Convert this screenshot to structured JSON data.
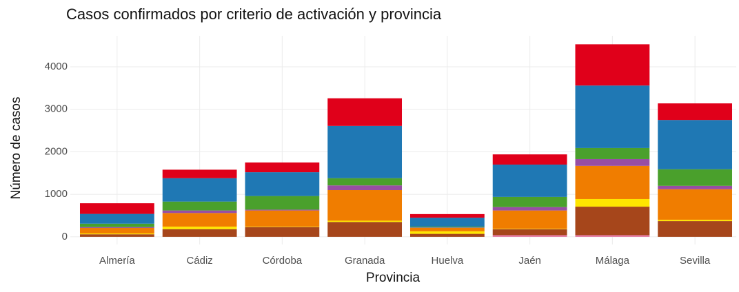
{
  "chart_data": {
    "type": "stacked_bar",
    "title": "Casos confirmados por criterio de activación y provincia",
    "x_label": "Provincia",
    "y_label": "Número de casos",
    "categories": [
      "Almería",
      "Cádiz",
      "Córdoba",
      "Granada",
      "Huelva",
      "Jaén",
      "Málaga",
      "Sevilla"
    ],
    "series": [
      {
        "color": "#e377a0",
        "values": [
          0,
          0,
          0,
          0,
          0,
          40,
          40,
          0
        ]
      },
      {
        "color": "#a6461b",
        "values": [
          60,
          180,
          230,
          350,
          70,
          140,
          670,
          370
        ]
      },
      {
        "color": "#ffe600",
        "values": [
          20,
          60,
          10,
          30,
          60,
          10,
          180,
          30
        ]
      },
      {
        "color": "#f07d00",
        "values": [
          130,
          320,
          380,
          720,
          80,
          430,
          780,
          720
        ]
      },
      {
        "color": "#984ea3",
        "values": [
          20,
          60,
          20,
          110,
          10,
          80,
          160,
          80
        ]
      },
      {
        "color": "#4aa02c",
        "values": [
          80,
          210,
          320,
          170,
          20,
          240,
          260,
          390
        ]
      },
      {
        "color": "#1f78b4",
        "values": [
          230,
          550,
          560,
          1230,
          210,
          760,
          1470,
          1160
        ]
      },
      {
        "color": "#e0001a",
        "values": [
          250,
          200,
          230,
          650,
          85,
          240,
          970,
          390
        ]
      }
    ],
    "ylim": [
      -180,
      4730
    ],
    "yticks": [
      0,
      1000,
      2000,
      3000,
      4000
    ],
    "grid": true
  }
}
